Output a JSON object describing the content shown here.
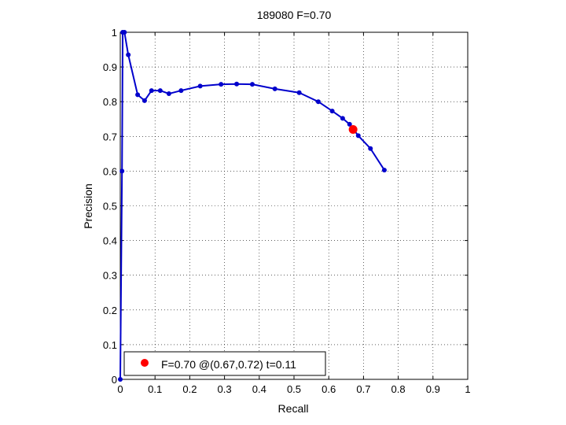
{
  "chart_data": {
    "type": "line",
    "title": "189080 F=0.70",
    "xlabel": "Recall",
    "ylabel": "Precision",
    "xlim": [
      0,
      1
    ],
    "ylim": [
      0,
      1
    ],
    "grid": true,
    "legend_position": "bottom-left",
    "x_ticks": [
      "0",
      "0.1",
      "0.2",
      "0.3",
      "0.4",
      "0.5",
      "0.6",
      "0.7",
      "0.8",
      "0.9",
      "1"
    ],
    "y_ticks": [
      "0",
      "0.1",
      "0.2",
      "0.3",
      "0.4",
      "0.5",
      "0.6",
      "0.7",
      "0.8",
      "0.9",
      "1"
    ],
    "series": [
      {
        "color": "#0000cc",
        "points": [
          [
            0.0,
            0.0
          ],
          [
            0.005,
            0.6
          ],
          [
            0.007,
            1.0
          ],
          [
            0.012,
            1.0
          ],
          [
            0.023,
            0.935
          ],
          [
            0.05,
            0.82
          ],
          [
            0.07,
            0.803
          ],
          [
            0.09,
            0.832
          ],
          [
            0.115,
            0.832
          ],
          [
            0.14,
            0.823
          ],
          [
            0.175,
            0.832
          ],
          [
            0.23,
            0.845
          ],
          [
            0.29,
            0.85
          ],
          [
            0.335,
            0.851
          ],
          [
            0.38,
            0.85
          ],
          [
            0.445,
            0.837
          ],
          [
            0.515,
            0.826
          ],
          [
            0.57,
            0.8
          ],
          [
            0.61,
            0.773
          ],
          [
            0.64,
            0.752
          ],
          [
            0.66,
            0.735
          ],
          [
            0.685,
            0.702
          ],
          [
            0.72,
            0.665
          ],
          [
            0.76,
            0.603
          ]
        ]
      }
    ],
    "highlight": {
      "color": "#ff0000",
      "recall": 0.67,
      "precision": 0.72,
      "label": "F=0.70 @(0.67,0.72) t=0.11"
    }
  }
}
